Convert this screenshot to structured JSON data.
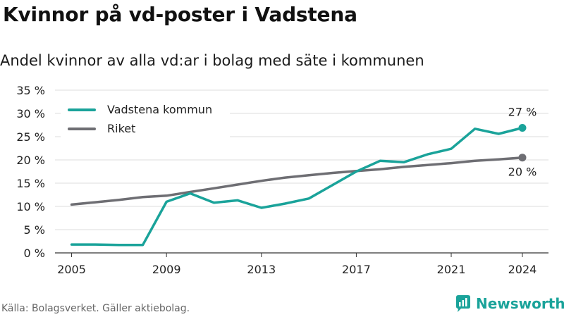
{
  "title": "Kvinnor på vd-poster i Vadstena",
  "subtitle": "Andel kvinnor av alla vd:ar i bolag med säte i kommunen",
  "source": "Källa: Bolagsverket. Gäller aktiebolag.",
  "brand": {
    "name": "Newsworthy",
    "icon": "newsworthy-logo-icon",
    "color": "#1aa39a"
  },
  "chart_data": {
    "type": "line",
    "title": "Kvinnor på vd-poster i Vadstena",
    "subtitle": "Andel kvinnor av alla vd:ar i bolag med säte i kommunen",
    "x": [
      2005,
      2006,
      2007,
      2008,
      2009,
      2010,
      2011,
      2012,
      2013,
      2014,
      2015,
      2016,
      2017,
      2018,
      2019,
      2020,
      2021,
      2022,
      2023,
      2024
    ],
    "x_ticks": [
      "2005",
      "2009",
      "2013",
      "2017",
      "2021",
      "2024"
    ],
    "x_tick_values": [
      2005,
      2009,
      2013,
      2017,
      2021,
      2024
    ],
    "y_ticks": [
      "0 %",
      "5 %",
      "10 %",
      "15 %",
      "20 %",
      "25 %",
      "30 %",
      "35 %"
    ],
    "y_tick_values": [
      0,
      5,
      10,
      15,
      20,
      25,
      30,
      35
    ],
    "ylim": [
      0,
      35
    ],
    "xlim": [
      2004.3,
      2025.1
    ],
    "grid": true,
    "legend_position": "top-left",
    "series": [
      {
        "name": "Vadstena kommun",
        "color": "#1aa39a",
        "values": [
          1.8,
          1.8,
          1.7,
          1.7,
          11.0,
          12.8,
          10.8,
          11.3,
          9.7,
          10.6,
          11.7,
          14.6,
          17.5,
          19.8,
          19.5,
          21.2,
          22.4,
          26.7,
          25.6,
          26.9
        ],
        "end_label": "27 %"
      },
      {
        "name": "Riket",
        "color": "#6e6e73",
        "values": [
          10.4,
          10.9,
          11.4,
          12.0,
          12.3,
          13.1,
          13.9,
          14.7,
          15.5,
          16.2,
          16.7,
          17.2,
          17.6,
          18.0,
          18.5,
          18.9,
          19.3,
          19.8,
          20.1,
          20.5
        ],
        "end_label": "20 %"
      }
    ]
  }
}
